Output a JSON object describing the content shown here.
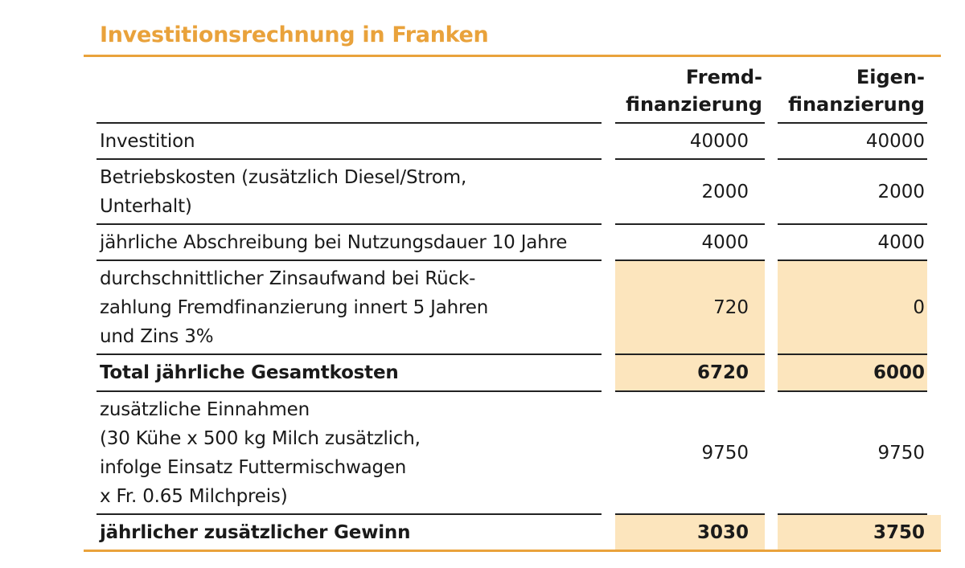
{
  "title": "Investitionsrechnung in Franken",
  "header": {
    "col1_line1": "Fremd-",
    "col1_line2": "finanzierung",
    "col2_line1": "Eigen-",
    "col2_line2": "finanzierung"
  },
  "rows": [
    {
      "label_lines": [
        "Investition"
      ],
      "fremd": "40000",
      "eigen": "40000"
    },
    {
      "label_lines": [
        "Betriebskosten (zusätzlich Diesel/Strom,",
        "Unterhalt)"
      ],
      "fremd": "2000",
      "eigen": "2000"
    },
    {
      "label_lines": [
        "jährliche Abschreibung bei Nutzungsdauer 10 Jahre"
      ],
      "fremd": "4000",
      "eigen": "4000"
    },
    {
      "label_lines": [
        "durchschnittlicher Zinsaufwand bei Rück-",
        "zahlung Fremdfinanzierung innert 5 Jahren",
        "und Zins 3%"
      ],
      "fremd": "720",
      "eigen": "0"
    },
    {
      "label_lines": [
        "Total jährliche Gesamtkosten"
      ],
      "fremd": "6720",
      "eigen": "6000"
    },
    {
      "label_lines": [
        "zusätzliche Einnahmen",
        "(30 Kühe x 500 kg Milch zusätzlich,",
        "infolge Einsatz Futtermischwagen",
        "x Fr. 0.65 Milchpreis)"
      ],
      "fremd": "9750",
      "eigen": "9750"
    },
    {
      "label_lines": [
        "jährlicher zusätzlicher Gewinn"
      ],
      "fremd": "3030",
      "eigen": "3750"
    }
  ]
}
